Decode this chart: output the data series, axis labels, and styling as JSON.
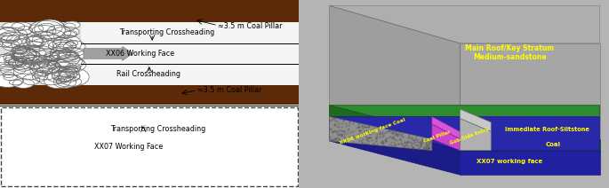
{
  "fig_width": 6.85,
  "fig_height": 2.12,
  "dpi": 100,
  "bg_color": "#c8c8c8",
  "left_panel": {
    "brown": "#5c2a08",
    "gravel_bg": "#e0e0e0",
    "seam_bg": "#f5f5f5",
    "arrow_fc": "#a0a0a0",
    "arrow_ec": "#808080",
    "line_color": "#222222",
    "dash_color": "#444444",
    "labels": {
      "transporting_upper": "Transporting Crossheading",
      "working_face_upper": "XX06 Working Face",
      "rail": "Rail Crossheading",
      "coal_pillar_upper": "≈3.5 m Coal Pillar",
      "coal_pillar_lower": "≈3.5 m Coal Pillar",
      "transporting_lower": "Transporting Crossheading",
      "working_face_lower": "XX07 Working Face"
    }
  },
  "right_panel": {
    "bg_color": "#b4b4b4",
    "gray_wall": "#8c8c8c",
    "gray_top": "#a8a8a8",
    "gray_front": "#9a9a9a",
    "green_top": "#2e8b2e",
    "green_side": "#1e6b1e",
    "blue_top": "#2828a8",
    "blue_side": "#1c1c88",
    "blue_front": "#2020a0",
    "goaf_color": "#909090",
    "goaf_top_color": "#a0a0a0",
    "pillar_color": "#cc44cc",
    "pillar_top_color": "#d855d8",
    "entry_color": "#b0b0b0",
    "entry_top_color": "#c8c8c8",
    "label_color": "#ffff00",
    "labels": {
      "main_roof": "Main Roof/Key Stratum\nMedium-sandstone",
      "immediate_roof": "Immediate Roof-Siltstone",
      "coal": "Coal",
      "xx06_coal": "XX06 working face Coal",
      "coal_pillar": "Coal Pillar",
      "gob_side_entry": "Gob-Side Entry",
      "xx07_working_face": "XX07 working face"
    }
  }
}
